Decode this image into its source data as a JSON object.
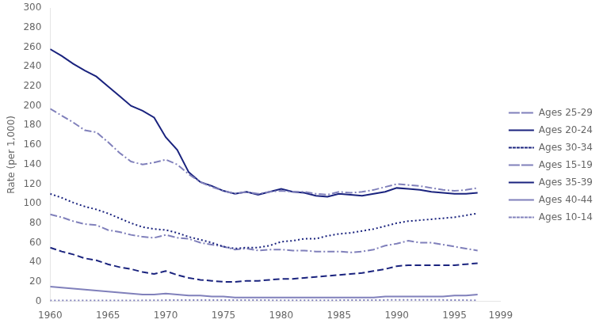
{
  "chart_data": {
    "type": "line",
    "y_label": "Rate (per 1,000)",
    "x": [
      1960,
      1961,
      1962,
      1963,
      1964,
      1965,
      1966,
      1967,
      1968,
      1969,
      1970,
      1971,
      1972,
      1973,
      1974,
      1975,
      1976,
      1977,
      1978,
      1979,
      1980,
      1981,
      1982,
      1983,
      1984,
      1985,
      1986,
      1987,
      1988,
      1989,
      1990,
      1991,
      1992,
      1993,
      1994,
      1995,
      1996,
      1997
    ],
    "xlim": [
      1960,
      1999
    ],
    "xticks": [
      1960,
      1965,
      1970,
      1975,
      1980,
      1985,
      1990,
      1995,
      1999
    ],
    "ylim": [
      0,
      300
    ],
    "yticks": [
      0,
      20,
      40,
      60,
      80,
      100,
      120,
      140,
      160,
      180,
      200,
      220,
      240,
      260,
      280,
      300
    ],
    "grid": false,
    "legend": "right",
    "series": [
      {
        "name": "Ages 25-29",
        "color": "#8080bb",
        "line_style": "dashdot",
        "values": [
          197,
          190,
          183,
          175,
          173,
          163,
          152,
          143,
          140,
          142,
          145,
          140,
          130,
          122,
          117,
          113,
          110,
          112,
          110,
          112,
          113,
          112,
          112,
          110,
          109,
          112,
          111,
          112,
          114,
          117,
          120,
          119,
          118,
          116,
          114,
          113,
          114,
          116
        ]
      },
      {
        "name": "Ages 20-24",
        "color": "#1a237e",
        "line_style": "solid",
        "values": [
          258,
          251,
          243,
          236,
          230,
          220,
          210,
          200,
          195,
          188,
          168,
          155,
          132,
          122,
          118,
          113,
          110,
          112,
          109,
          112,
          115,
          112,
          111,
          108,
          107,
          110,
          109,
          108,
          110,
          112,
          116,
          115,
          114,
          112,
          111,
          110,
          110,
          111
        ]
      },
      {
        "name": "Ages 30-34",
        "color": "#1a237e",
        "line_style": "dotted",
        "values": [
          110,
          106,
          101,
          97,
          94,
          90,
          85,
          80,
          76,
          74,
          73,
          70,
          66,
          63,
          60,
          56,
          54,
          55,
          55,
          57,
          61,
          62,
          64,
          64,
          67,
          69,
          70,
          72,
          74,
          77,
          80,
          82,
          83,
          84,
          85,
          86,
          88,
          90
        ]
      },
      {
        "name": "Ages 15-19",
        "color": "#8080bb",
        "line_style": "dashdot",
        "values": [
          89,
          86,
          82,
          79,
          78,
          73,
          71,
          68,
          66,
          65,
          68,
          65,
          64,
          60,
          58,
          56,
          53,
          54,
          52,
          53,
          53,
          52,
          52,
          51,
          51,
          51,
          50,
          51,
          53,
          57,
          59,
          62,
          60,
          60,
          58,
          56,
          54,
          52
        ]
      },
      {
        "name": "Ages 35-39",
        "color": "#1a237e",
        "line_style": "dashed",
        "values": [
          55,
          51,
          48,
          44,
          42,
          38,
          35,
          33,
          30,
          28,
          31,
          27,
          24,
          22,
          21,
          20,
          20,
          21,
          21,
          22,
          23,
          23,
          24,
          25,
          26,
          27,
          28,
          29,
          31,
          33,
          36,
          37,
          37,
          37,
          37,
          37,
          38,
          39
        ]
      },
      {
        "name": "Ages 40-44",
        "color": "#8080bb",
        "line_style": "solid",
        "values": [
          15,
          14,
          13,
          12,
          11,
          10,
          9,
          8,
          7,
          7,
          8,
          7,
          6,
          6,
          5,
          5,
          4,
          4,
          4,
          4,
          4,
          4,
          4,
          4,
          4,
          4,
          4,
          4,
          4,
          5,
          5,
          5,
          5,
          5,
          5,
          6,
          6,
          7
        ]
      },
      {
        "name": "Ages 10-14",
        "color": "#8080bb",
        "line_style": "dotted",
        "values": [
          0.8,
          0.8,
          0.8,
          0.8,
          0.8,
          0.8,
          0.9,
          0.9,
          1.0,
          1.0,
          1.2,
          1.2,
          1.2,
          1.2,
          1.2,
          1.2,
          1.2,
          1.2,
          1.2,
          1.2,
          1.1,
          1.1,
          1.1,
          1.1,
          1.1,
          1.2,
          1.3,
          1.3,
          1.3,
          1.4,
          1.4,
          1.4,
          1.4,
          1.4,
          1.4,
          1.3,
          1.2,
          1.1
        ]
      }
    ]
  }
}
